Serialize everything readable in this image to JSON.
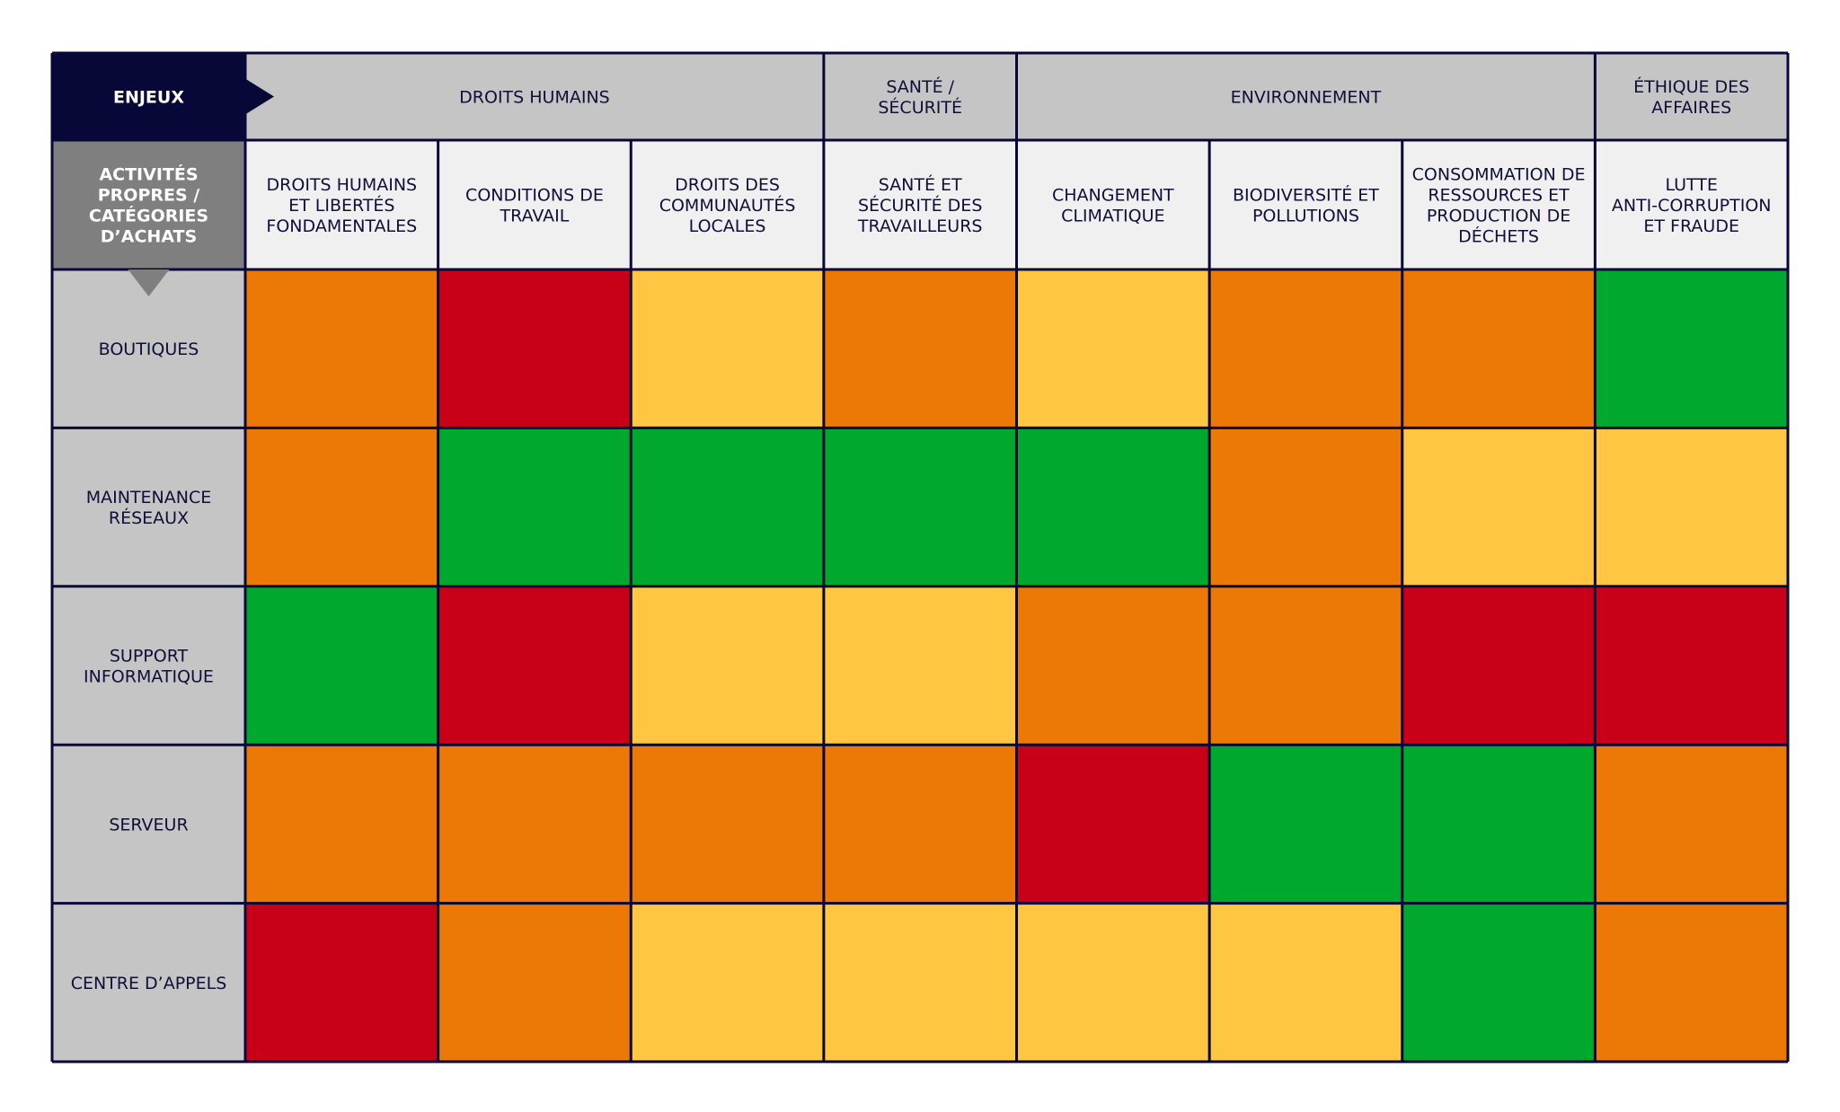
{
  "chart_data": {
    "type": "heatmap",
    "corner_top_label": "ENJEUX",
    "corner_left_label": "ACTIVITÉS PROPRES / CATÉGORIES D’ACHATS",
    "group_headers": [
      {
        "label": "DROITS HUMAINS",
        "span": 3
      },
      {
        "label": "SANTÉ / SÉCURITÉ",
        "span": 1
      },
      {
        "label": "ENVIRONNEMENT",
        "span": 3
      },
      {
        "label": "ÉTHIQUE DES AFFAIRES",
        "span": 1
      }
    ],
    "columns": [
      "DROITS HUMAINS ET LIBERTÉS FONDAMENTALES",
      "CONDITIONS DE TRAVAIL",
      "DROITS DES COMMUNAUTÉS LOCALES",
      "SANTÉ ET SÉCURITÉ DES TRAVAILLEURS",
      "CHANGEMENT CLIMATIQUE",
      "BIODIVERSITÉ ET POLLUTIONS",
      "CONSOMMATION DE RESSOURCES ET PRODUCTION DE DÉCHETS",
      "LUTTE ANTI-CORRUPTION ET FRAUDE"
    ],
    "rows": [
      "BOUTIQUES",
      "MAINTENANCE RÉSEAUX",
      "SUPPORT INFORMATIQUE",
      "SERVEUR",
      "CENTRE D’APPELS"
    ],
    "values": [
      [
        "orange",
        "red",
        "yellow",
        "orange",
        "yellow",
        "orange",
        "orange",
        "green"
      ],
      [
        "orange",
        "green",
        "green",
        "green",
        "green",
        "orange",
        "yellow",
        "yellow"
      ],
      [
        "green",
        "red",
        "yellow",
        "yellow",
        "orange",
        "orange",
        "red",
        "red"
      ],
      [
        "orange",
        "orange",
        "orange",
        "orange",
        "red",
        "green",
        "green",
        "orange"
      ],
      [
        "red",
        "orange",
        "yellow",
        "yellow",
        "yellow",
        "yellow",
        "green",
        "orange"
      ]
    ],
    "level_colors": {
      "green": "#00a82d",
      "yellow": "#fec641",
      "orange": "#ec7905",
      "red": "#c80018"
    },
    "style_colors": {
      "navy": "#080838",
      "header_grey": "#c4c5c4",
      "column_header_bg": "#f0f0f1",
      "corner_grey": "#7f7f7f",
      "row_label_bg": "#c4c5c4",
      "text_dark": "#0f0f3a"
    }
  }
}
